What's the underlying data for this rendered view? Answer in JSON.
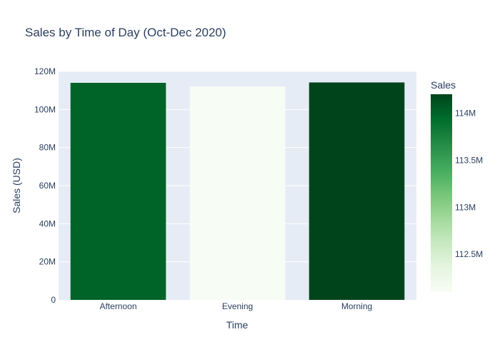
{
  "chart_data": {
    "type": "bar",
    "title": "Sales by Time of Day (Oct-Dec 2020)",
    "xlabel": "Time",
    "ylabel": "Sales (USD)",
    "categories": [
      "Afternoon",
      "Evening",
      "Morning"
    ],
    "values": [
      114000000,
      112100000,
      114200000
    ],
    "ylim": [
      0,
      120000000
    ],
    "yticks": [
      {
        "value": 0,
        "label": "0"
      },
      {
        "value": 20000000,
        "label": "20M"
      },
      {
        "value": 40000000,
        "label": "40M"
      },
      {
        "value": 60000000,
        "label": "60M"
      },
      {
        "value": 80000000,
        "label": "80M"
      },
      {
        "value": 100000000,
        "label": "100M"
      },
      {
        "value": 120000000,
        "label": "120M"
      }
    ],
    "grid": true,
    "colorbar": {
      "title": "Sales",
      "range": [
        112100000,
        114200000
      ],
      "ticks": [
        {
          "value": 112500000,
          "label": "112.5M"
        },
        {
          "value": 113000000,
          "label": "113M"
        },
        {
          "value": 113500000,
          "label": "113.5M"
        },
        {
          "value": 114000000,
          "label": "114M"
        }
      ],
      "colorscale": [
        "#f7fcf5",
        "#e5f5e0",
        "#c7e9c0",
        "#a1d99b",
        "#74c476",
        "#41ab5d",
        "#238b45",
        "#006d2c",
        "#00441b"
      ],
      "placement": "right"
    }
  }
}
